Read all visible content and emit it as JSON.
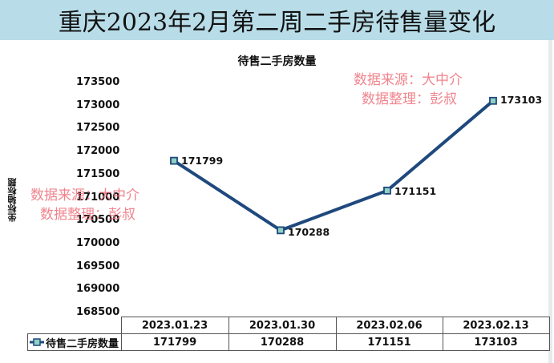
{
  "header": {
    "title": "重庆2023年2月第二周二手房待售量变化"
  },
  "chart": {
    "title": "待售二手房数量",
    "y_axis_title": "坐标轴标题",
    "y_ticks": [
      "173500",
      "173000",
      "172500",
      "172000",
      "171500",
      "171000",
      "170500",
      "170000",
      "169500",
      "169000",
      "168500"
    ],
    "data_labels": [
      "171799",
      "170288",
      "171151",
      "173103"
    ],
    "line_color": "#1f497d",
    "marker_fill": "#8fd1c5"
  },
  "watermark": {
    "line1": "数据来源：大中介",
    "line2": "数据整理：彭叔"
  },
  "table": {
    "legend_label": "待售二手房数量",
    "dates": [
      "2023.01.23",
      "2023.01.30",
      "2023.02.06",
      "2023.02.13"
    ],
    "values": [
      "171799",
      "170288",
      "171151",
      "173103"
    ]
  },
  "chart_data": {
    "type": "line",
    "title": "待售二手房数量",
    "categories": [
      "2023.01.23",
      "2023.01.30",
      "2023.02.06",
      "2023.02.13"
    ],
    "series": [
      {
        "name": "待售二手房数量",
        "values": [
          171799,
          170288,
          171151,
          173103
        ]
      }
    ],
    "xlabel": "",
    "ylabel": "坐标轴标题",
    "ylim": [
      168500,
      173500
    ],
    "y_tick_step": 500,
    "data_labels": true,
    "grid": false,
    "legend_position": "data-table"
  }
}
